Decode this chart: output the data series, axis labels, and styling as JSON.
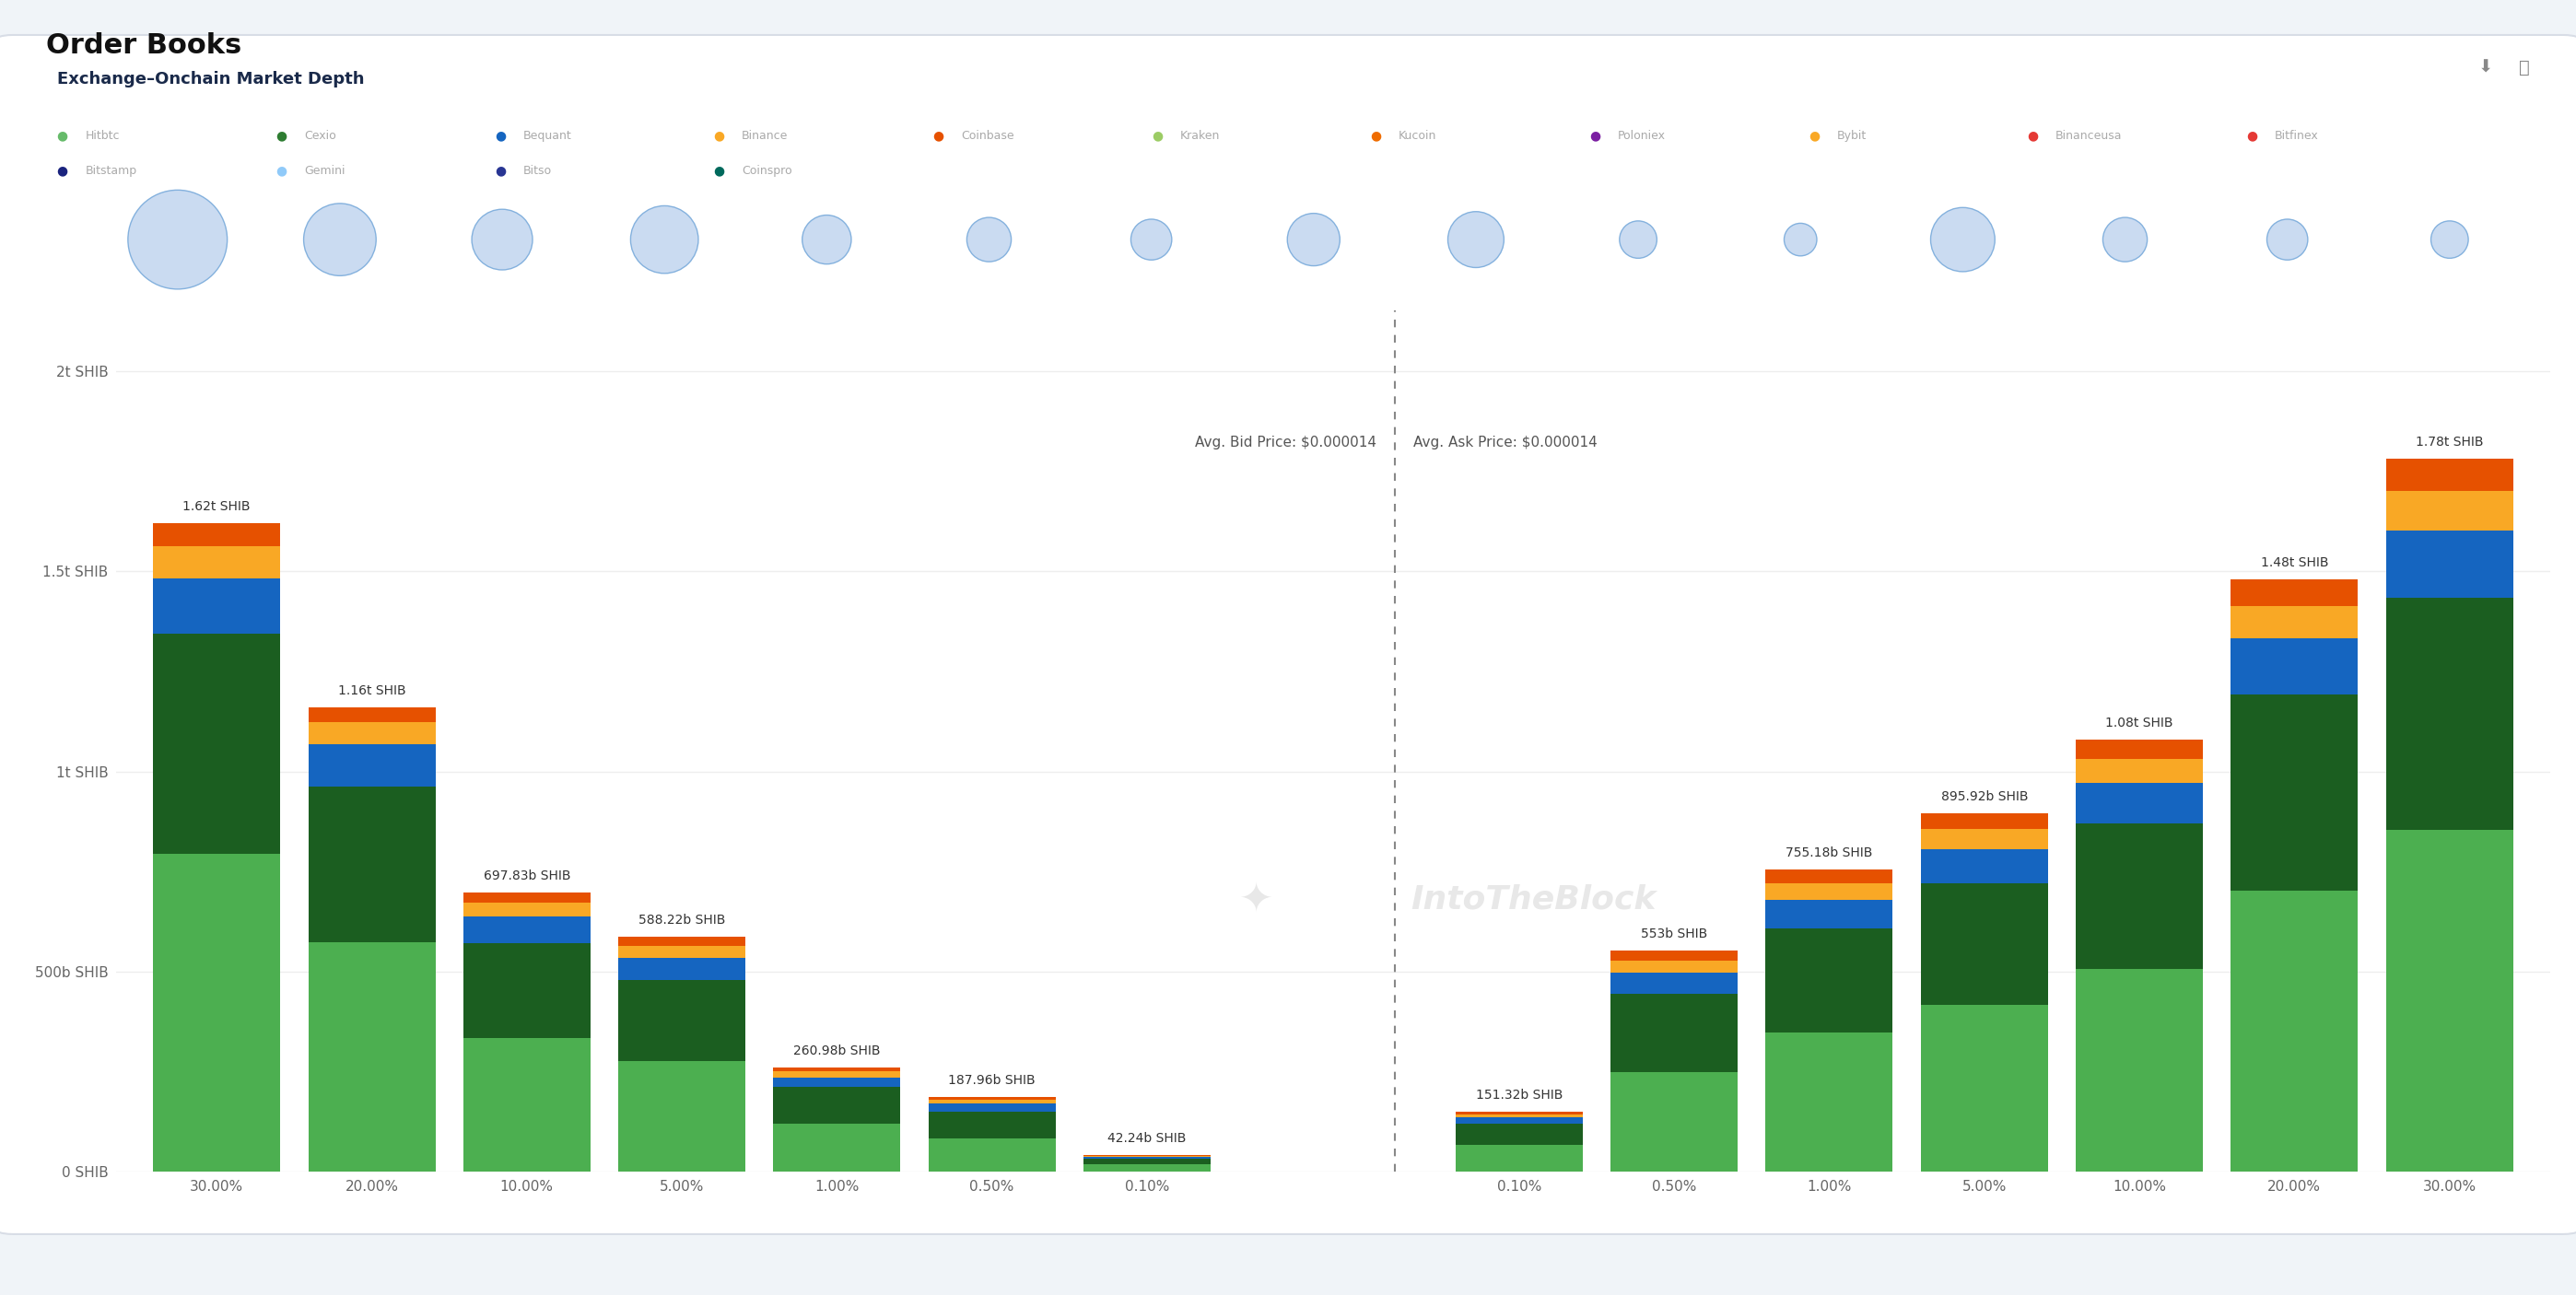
{
  "title": "Order Books",
  "subtitle": "Exchange–Onchain Market Depth",
  "bg_color": "#f0f4f8",
  "panel_color": "#ffffff",
  "avg_bid_label": "Avg. Bid Price: $0.000014",
  "avg_ask_label": "Avg. Ask Price: $0.000014",
  "watermark_text": "IntoTheBlock",
  "legend_row1": [
    "Hitbtc",
    "Cexio",
    "Bequant",
    "Binance",
    "Coinbase",
    "Kraken",
    "Kucoin",
    "Poloniex",
    "Bybit",
    "Binanceusa",
    "Bitfinex"
  ],
  "legend_row2": [
    "Bitstamp",
    "Gemini",
    "Bitso",
    "Coinspro"
  ],
  "legend_dot_colors": {
    "Hitbtc": "#66bb6a",
    "Cexio": "#2e7d32",
    "Bequant": "#1565c0",
    "Binance": "#f9a825",
    "Coinbase": "#e65100",
    "Kraken": "#9ccc65",
    "Kucoin": "#ef6c00",
    "Poloniex": "#7b1fa2",
    "Bybit": "#f9a825",
    "Binanceusa": "#e53935",
    "Bitfinex": "#e53935",
    "Bitstamp": "#1a237e",
    "Gemini": "#90caf9",
    "Bitso": "#283593",
    "Coinspro": "#00695c"
  },
  "x_labels_bid": [
    "30.00%",
    "20.00%",
    "10.00%",
    "5.00%",
    "1.00%",
    "0.50%",
    "0.10%"
  ],
  "x_labels_ask": [
    "0.10%",
    "0.50%",
    "1.00%",
    "5.00%",
    "10.00%",
    "20.00%",
    "30.00%"
  ],
  "bid_annotations": [
    "1.62t SHIB",
    "1.16t SHIB",
    "697.83b SHIB",
    "588.22b SHIB",
    "260.98b SHIB",
    "187.96b SHIB",
    "42.24b SHIB"
  ],
  "ask_annotations": [
    "151.32b SHIB",
    "553b SHIB",
    "755.18b SHIB",
    "895.92b SHIB",
    "1.08t SHIB",
    "1.48t SHIB",
    "1.78t SHIB"
  ],
  "bid_totals": [
    1620,
    1160,
    697.83,
    588.22,
    260.98,
    187.96,
    42.24
  ],
  "ask_totals": [
    151.32,
    553,
    755.18,
    895.92,
    1080,
    1480,
    1780
  ],
  "stack_colors": [
    "#4caf50",
    "#1b5e20",
    "#1565c0",
    "#f9a825",
    "#e65100"
  ],
  "bid_proportions": [
    [
      0.49,
      0.34,
      0.085,
      0.05,
      0.035
    ],
    [
      0.495,
      0.335,
      0.09,
      0.048,
      0.032
    ],
    [
      0.48,
      0.34,
      0.095,
      0.05,
      0.035
    ],
    [
      0.47,
      0.345,
      0.095,
      0.05,
      0.04
    ],
    [
      0.46,
      0.35,
      0.095,
      0.055,
      0.04
    ],
    [
      0.45,
      0.355,
      0.1,
      0.055,
      0.04
    ],
    [
      0.44,
      0.36,
      0.1,
      0.055,
      0.045
    ]
  ],
  "ask_proportions": [
    [
      0.44,
      0.36,
      0.1,
      0.055,
      0.045
    ],
    [
      0.45,
      0.355,
      0.095,
      0.055,
      0.045
    ],
    [
      0.46,
      0.345,
      0.095,
      0.055,
      0.045
    ],
    [
      0.465,
      0.34,
      0.095,
      0.055,
      0.045
    ],
    [
      0.47,
      0.335,
      0.095,
      0.055,
      0.045
    ],
    [
      0.475,
      0.33,
      0.095,
      0.055,
      0.045
    ],
    [
      0.48,
      0.325,
      0.095,
      0.055,
      0.045
    ]
  ],
  "ytick_labels": [
    "0 SHIB",
    "500b SHIB",
    "1t SHIB",
    "1.5t SHIB",
    "2t SHIB"
  ],
  "ytick_vals": [
    0,
    500,
    1000,
    1500,
    2000
  ],
  "bubble_sizes": [
    0.85,
    0.62,
    0.52,
    0.58,
    0.42,
    0.38,
    0.35,
    0.45,
    0.48,
    0.32,
    0.28,
    0.55,
    0.38,
    0.35,
    0.32
  ],
  "bubble_color": "#c5d8f0",
  "bubble_edge_color": "#7aabdb"
}
